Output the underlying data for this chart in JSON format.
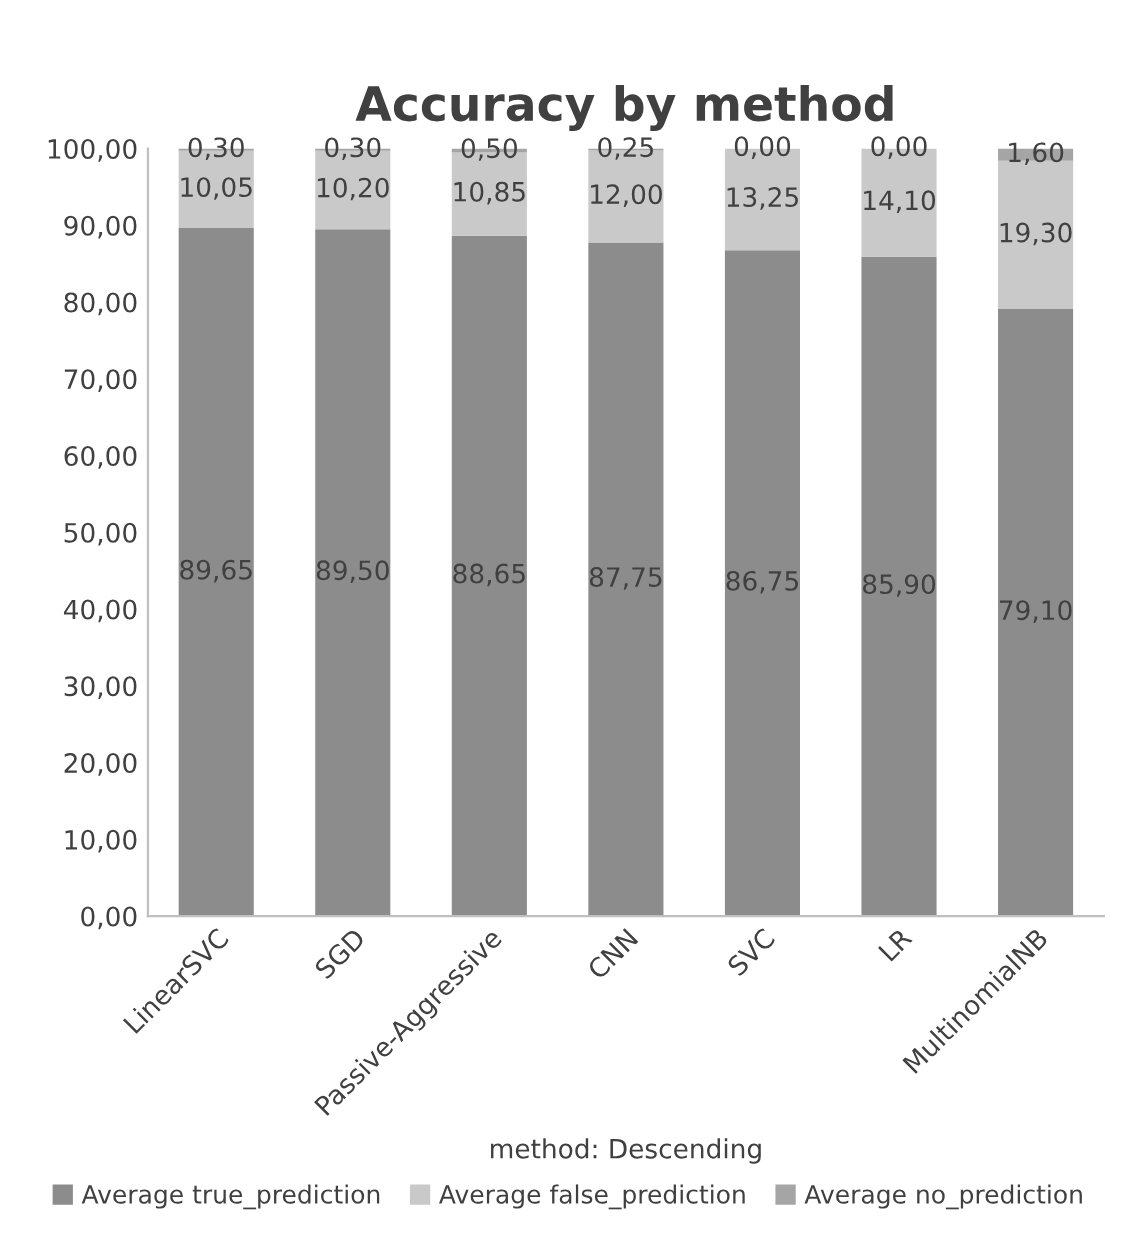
{
  "chart_data": {
    "type": "bar",
    "stacked": true,
    "title": "Accuracy by method",
    "xlabel": "method: Descending",
    "categories": [
      "LinearSVC",
      "SGD",
      "Passive-Aggressive",
      "CNN",
      "SVC",
      "LR",
      "MultinomialNB"
    ],
    "series": [
      {
        "name": "Average true_prediction",
        "color": "#8c8c8c",
        "values": [
          89.65,
          89.5,
          88.65,
          87.75,
          86.75,
          85.9,
          79.1
        ],
        "value_labels": [
          "89,65",
          "89,50",
          "88,65",
          "87,75",
          "86,75",
          "85,90",
          "79,10"
        ]
      },
      {
        "name": "Average false_prediction",
        "color": "#c9c9c9",
        "values": [
          10.05,
          10.2,
          10.85,
          12.0,
          13.25,
          14.1,
          19.3
        ],
        "value_labels": [
          "10,05",
          "10,20",
          "10,85",
          "12,00",
          "13,25",
          "14,10",
          "19,30"
        ]
      },
      {
        "name": "Average no_prediction",
        "color": "#a5a5a5",
        "values": [
          0.3,
          0.3,
          0.5,
          0.25,
          0.0,
          0.0,
          1.6
        ],
        "value_labels": [
          "0,30",
          "0,30",
          "0,50",
          "0,25",
          "0,00",
          "0,00",
          "1,60"
        ]
      }
    ],
    "ylim": [
      0,
      100
    ],
    "yticks": [
      {
        "value": 0,
        "label": "0,00"
      },
      {
        "value": 10,
        "label": "10,00"
      },
      {
        "value": 20,
        "label": "20,00"
      },
      {
        "value": 30,
        "label": "30,00"
      },
      {
        "value": 40,
        "label": "40,00"
      },
      {
        "value": 50,
        "label": "50,00"
      },
      {
        "value": 60,
        "label": "60,00"
      },
      {
        "value": 70,
        "label": "70,00"
      },
      {
        "value": 80,
        "label": "80,00"
      },
      {
        "value": 90,
        "label": "90,00"
      },
      {
        "value": 100,
        "label": "100,00"
      }
    ],
    "grid": false,
    "legend": "bottom"
  }
}
